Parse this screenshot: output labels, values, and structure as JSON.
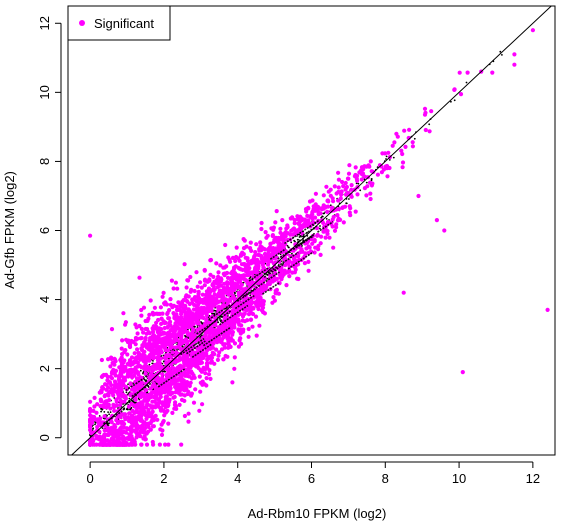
{
  "chart_data": {
    "type": "scatter",
    "title": "",
    "xlabel": "Ad-Rbm10 FPKM (log2)",
    "ylabel": "Ad-Gfb FPKM (log2)",
    "xlim": [
      -0.6,
      12.6
    ],
    "ylim": [
      -0.5,
      12.5
    ],
    "x_ticks": [
      0,
      2,
      4,
      6,
      8,
      10,
      12
    ],
    "y_ticks": [
      0,
      2,
      4,
      6,
      8,
      10,
      12
    ],
    "grid": false,
    "legend": {
      "position": "top-left",
      "entries": [
        {
          "label": "Significant",
          "color": "#ff00ff"
        }
      ]
    },
    "reference_line": {
      "type": "identity",
      "slope": 1,
      "intercept": 0
    },
    "colors": {
      "significant": "#ff00ff",
      "not_significant": "#000000",
      "line": "#000000"
    },
    "density_bins": [
      {
        "x": 0.0,
        "n": 90,
        "spread": 0.35
      },
      {
        "x": 0.5,
        "n": 260,
        "spread": 0.75
      },
      {
        "x": 1.0,
        "n": 360,
        "spread": 0.85
      },
      {
        "x": 1.5,
        "n": 420,
        "spread": 0.85
      },
      {
        "x": 2.0,
        "n": 450,
        "spread": 0.8
      },
      {
        "x": 2.5,
        "n": 450,
        "spread": 0.75
      },
      {
        "x": 3.0,
        "n": 420,
        "spread": 0.7
      },
      {
        "x": 3.5,
        "n": 360,
        "spread": 0.65
      },
      {
        "x": 4.0,
        "n": 300,
        "spread": 0.6
      },
      {
        "x": 4.5,
        "n": 240,
        "spread": 0.55
      },
      {
        "x": 5.0,
        "n": 190,
        "spread": 0.5
      },
      {
        "x": 5.5,
        "n": 150,
        "spread": 0.45
      },
      {
        "x": 6.0,
        "n": 110,
        "spread": 0.4
      },
      {
        "x": 6.5,
        "n": 80,
        "spread": 0.38
      },
      {
        "x": 7.0,
        "n": 55,
        "spread": 0.35
      },
      {
        "x": 7.5,
        "n": 35,
        "spread": 0.32
      },
      {
        "x": 8.0,
        "n": 22,
        "spread": 0.3
      },
      {
        "x": 8.5,
        "n": 14,
        "spread": 0.28
      },
      {
        "x": 9.0,
        "n": 10,
        "spread": 0.28
      },
      {
        "x": 10.0,
        "n": 8,
        "spread": 0.3
      },
      {
        "x": 11.0,
        "n": 5,
        "spread": 0.25
      }
    ],
    "highlighted_points": [
      {
        "x": 12.4,
        "y": 3.7
      },
      {
        "x": 8.5,
        "y": 4.2
      },
      {
        "x": 9.6,
        "y": 6.0
      },
      {
        "x": 9.4,
        "y": 6.3
      },
      {
        "x": 0.0,
        "y": 5.85
      },
      {
        "x": 10.1,
        "y": 1.9
      },
      {
        "x": 12.0,
        "y": 11.8
      },
      {
        "x": 11.5,
        "y": 10.8
      },
      {
        "x": 11.5,
        "y": 11.1
      },
      {
        "x": 10.6,
        "y": 10.6
      },
      {
        "x": 8.9,
        "y": 7.0
      },
      {
        "x": 8.3,
        "y": 8.8
      }
    ]
  }
}
